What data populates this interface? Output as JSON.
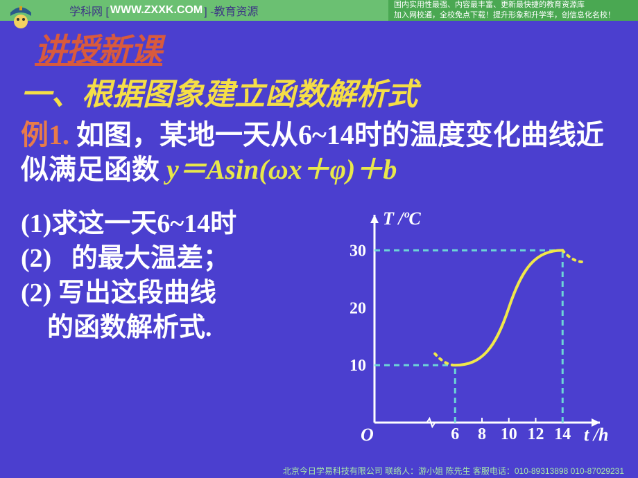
{
  "colors": {
    "slide_bg": "#4b3fcf",
    "top_left_bg": "#6bc072",
    "top_left_text": "#3d3585",
    "top_right_bg": "#4aa852",
    "top_right_text": "#ffffff",
    "h1": "#d85a3d",
    "h2": "#f5de47",
    "example_label": "#e87b4a",
    "body_text": "#ffffff",
    "formula": "#e8e84a",
    "axis": "#ffffff",
    "curve": "#f0e84a",
    "dashed": "#6dd6d6",
    "bottom_text": "#a8e8a8"
  },
  "top_banner": {
    "site_label_pre": "学科网 [",
    "site_url": "WWW.ZXXK.COM",
    "site_label_post": "] -教育资源",
    "tagline1": "国内实用性最强、内容最丰富、更新最快捷的教育资源库",
    "tagline2": "加入网校通，全校免点下载！提升形象和升学率，创信息化名校！"
  },
  "headings": {
    "lesson": "讲授新课",
    "section": "一、根据图象建立函数解析式"
  },
  "problem": {
    "label": "例1.",
    "text_part1": " 如图，某地一天从6~14时的温度变化曲线近似满足函数 ",
    "formula": "y＝Asin(ωx＋φ)＋b"
  },
  "questions": {
    "q1_pre": "(1)",
    "q1_text": "求这一天6~14时",
    "q2_pre": "(2)",
    "q2_text": "   的最大温差；",
    "q3_pre": "(2)",
    "q3_text": " 写出这段曲线",
    "q3_cont": "    的函数解析式."
  },
  "chart": {
    "type": "line",
    "y_axis_label": "T /°C",
    "x_axis_label": "t /h",
    "origin_label": "O",
    "x_ticks": [
      6,
      8,
      10,
      12,
      14
    ],
    "y_ticks": [
      10,
      20,
      30
    ],
    "xlim": [
      0,
      16
    ],
    "ylim": [
      0,
      35
    ],
    "curve_points": [
      {
        "x": 6,
        "y": 10
      },
      {
        "x": 8,
        "y": 12
      },
      {
        "x": 10,
        "y": 20
      },
      {
        "x": 12,
        "y": 28
      },
      {
        "x": 14,
        "y": 30
      }
    ],
    "dashed_guides": [
      {
        "from": [
          0,
          30
        ],
        "to": [
          14,
          30
        ]
      },
      {
        "from": [
          0,
          10
        ],
        "to": [
          6,
          10
        ]
      },
      {
        "from": [
          6,
          0
        ],
        "to": [
          6,
          10
        ]
      },
      {
        "from": [
          14,
          0
        ],
        "to": [
          14,
          30
        ]
      }
    ],
    "dotted_extensions": [
      {
        "from": [
          4.5,
          12
        ],
        "to": [
          6,
          10
        ]
      },
      {
        "from": [
          14,
          30
        ],
        "to": [
          15.5,
          28
        ]
      }
    ],
    "line_width": 4,
    "axis_width": 3,
    "dash_pattern": "8,6"
  },
  "footer": "北京今日学易科技有限公司 联络人：游小姐 陈先生 客服电话：010-89313898 010-87029231"
}
